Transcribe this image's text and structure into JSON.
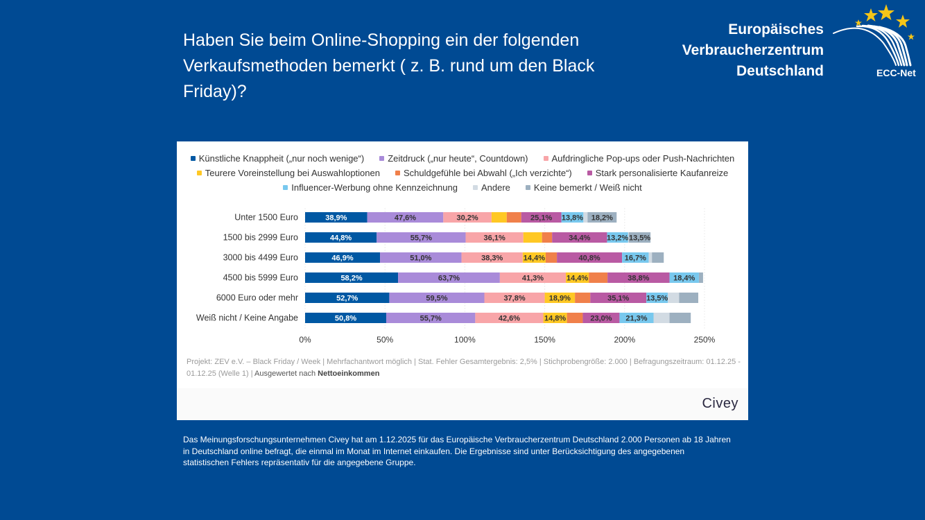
{
  "header": {
    "title": "Haben Sie beim Online-Shopping ein der folgenden Verkaufsmethoden bemerkt ( z. B. rund um den Black Friday)?",
    "brand_lines": [
      "Europäisches",
      "Verbraucherzentrum",
      "Deutschland"
    ],
    "logo_text": "ECC-Net",
    "logo_icon": "eu-stars-arc-icon"
  },
  "colors": {
    "background": "#004a93",
    "card": "#ffffff"
  },
  "chart_data": {
    "type": "bar",
    "orientation": "horizontal",
    "stacked": true,
    "title": "",
    "xlabel": "",
    "ylabel": "",
    "xlim": [
      0,
      250
    ],
    "x_ticks": [
      "0%",
      "50%",
      "100%",
      "150%",
      "200%",
      "250%"
    ],
    "grid": true,
    "legend_position": "top",
    "categories": [
      "Unter 1500 Euro",
      "1500 bis 2999 Euro",
      "3000 bis 4499 Euro",
      "4500 bis 5999 Euro",
      "6000 Euro oder mehr",
      "Weiß nicht / Keine Angabe"
    ],
    "series": [
      {
        "name": "Künstliche Knappheit („nur noch wenige“)",
        "color": "#0058a3",
        "label_color": "#ffffff",
        "values": [
          38.9,
          44.8,
          46.9,
          58.2,
          52.7,
          50.8
        ],
        "labels": [
          "38,9%",
          "44,8%",
          "46,9%",
          "58,2%",
          "52,7%",
          "50,8%"
        ]
      },
      {
        "name": "Zeitdruck („nur heute“, Countdown)",
        "color": "#a98bd9",
        "label_color": "#333333",
        "values": [
          47.6,
          55.7,
          51.0,
          63.7,
          59.5,
          55.7
        ],
        "labels": [
          "47,6%",
          "55,7%",
          "51,0%",
          "63,7%",
          "59,5%",
          "55,7%"
        ]
      },
      {
        "name": "Aufdringliche Pop-ups oder Push-Nachrichten",
        "color": "#f8a5a8",
        "label_color": "#333333",
        "values": [
          30.2,
          36.1,
          38.3,
          41.3,
          37.8,
          42.6
        ],
        "labels": [
          "30,2%",
          "36,1%",
          "38,3%",
          "41,3%",
          "37,8%",
          "42,6%"
        ]
      },
      {
        "name": "Teurere Voreinstellung bei Auswahloptionen",
        "color": "#ffc824",
        "label_color": "#333333",
        "values": [
          9.5,
          11.7,
          14.4,
          14.4,
          18.9,
          14.8
        ],
        "labels": [
          "",
          "",
          "14,4%",
          "14,4%",
          "18,9%",
          "14,8%"
        ]
      },
      {
        "name": "Schuldgefühle bei Abwahl („Ich verzichte“)",
        "color": "#f0804a",
        "label_color": "#333333",
        "values": [
          9.1,
          6.3,
          7.0,
          11.7,
          9.6,
          9.9
        ],
        "labels": [
          "",
          "",
          "",
          "",
          "",
          ""
        ]
      },
      {
        "name": "Stark personalisierte Kaufanreize",
        "color": "#b95aa3",
        "label_color": "#333333",
        "values": [
          25.1,
          34.4,
          40.8,
          38.8,
          35.1,
          23.0
        ],
        "labels": [
          "25,1%",
          "34,4%",
          "40,8%",
          "38,8%",
          "35,1%",
          "23,0%"
        ]
      },
      {
        "name": "Influencer-Werbung ohne Kennzeichnung",
        "color": "#78c8ee",
        "label_color": "#333333",
        "values": [
          13.8,
          13.2,
          16.7,
          18.4,
          13.5,
          21.3
        ],
        "labels": [
          "13,8%",
          "13,2%",
          "16,7%",
          "18,4%",
          "13,5%",
          "21,3%"
        ]
      },
      {
        "name": "Andere",
        "color": "#d2dbe3",
        "label_color": "#333333",
        "values": [
          2.6,
          0.5,
          2.0,
          0.0,
          7.0,
          10.0
        ],
        "labels": [
          "",
          "",
          "",
          "",
          "",
          ""
        ]
      },
      {
        "name": "Keine bemerkt / Weiß nicht",
        "color": "#9db0c0",
        "label_color": "#333333",
        "values": [
          18.2,
          13.5,
          7.4,
          2.6,
          12.0,
          13.3
        ],
        "labels": [
          "18,2%",
          "13,5%",
          "",
          "",
          "",
          ""
        ]
      }
    ]
  },
  "legend_rows": [
    [
      0,
      1,
      2
    ],
    [
      3,
      4,
      5
    ],
    [
      6,
      7,
      8
    ]
  ],
  "footnote": {
    "text": "Projekt: ZEV e.V. – Black Friday / Week | Mehrfachantwort möglich | Stat. Fehler Gesamtergebnis: 2,5% | Stichprobengröße: 2.000 | Befragungszeitraum: 01.12.25 - 01.12.25 (Welle 1) | ",
    "evaluated_prefix": "Ausgewertet nach",
    "evaluated_by": "Nettoeinkommen"
  },
  "civey_label": "Civey",
  "bottom_text": "Das Meinungsforschungsunternehmen Civey hat am 1.12.2025 für das Europäische Verbraucherzentrum Deutschland 2.000 Personen ab 18 Jahren in Deutschland online befragt, die einmal im Monat im Internet einkaufen. Die Ergebnisse sind unter Berücksichtigung des angegebenen statistischen Fehlers repräsentativ für die angegebene Gruppe."
}
